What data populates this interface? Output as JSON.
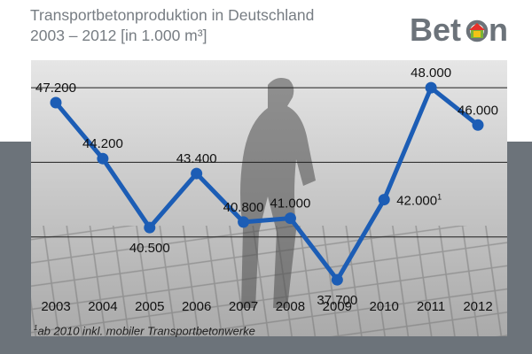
{
  "header": {
    "title": "Transportbetonproduktion in Deutschland",
    "subtitle": "2003 – 2012 [in 1.000 m³]"
  },
  "logo": {
    "text_left": "Bet",
    "text_right": "n",
    "icon": "house-in-o-icon",
    "colors": {
      "text": "#6c737a",
      "house_red": "#e4302c",
      "house_yellow": "#f2c316",
      "house_green": "#7ab536"
    }
  },
  "chart_data": {
    "type": "line",
    "title": "Transportbetonproduktion in Deutschland",
    "subtitle": "2003 – 2012 [in 1.000 m³]",
    "categories": [
      "2003",
      "2004",
      "2005",
      "2006",
      "2007",
      "2008",
      "2009",
      "2010",
      "2011",
      "2012"
    ],
    "values": [
      47200,
      44200,
      40500,
      43400,
      40800,
      41000,
      37700,
      42000,
      48000,
      46000
    ],
    "value_labels": [
      "47.200",
      "44.200",
      "40.500",
      "43.400",
      "40.800",
      "41.000",
      "37.700",
      "42.000",
      "48.000",
      "46.000"
    ],
    "label_footnote_marks": [
      "",
      "",
      "",
      "",
      "",
      "",
      "",
      "1",
      "",
      ""
    ],
    "xlabel": "",
    "ylabel": "",
    "ylim": [
      36000,
      50000
    ],
    "grid": true,
    "legend": "none",
    "line_color": "#1c5db5",
    "footnote_marker": "1",
    "footnote": "ab 2010 inkl. mobiler Transportbetonwerke"
  }
}
